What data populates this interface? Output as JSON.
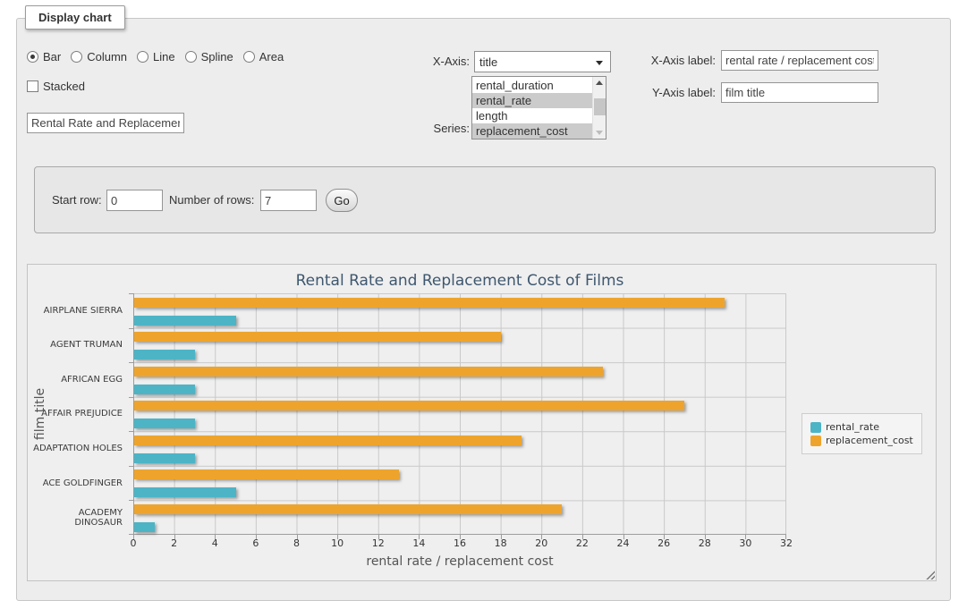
{
  "fieldset": {
    "legend": "Display chart"
  },
  "controls": {
    "chart_types": [
      {
        "label": "Bar",
        "selected": true
      },
      {
        "label": "Column",
        "selected": false
      },
      {
        "label": "Line",
        "selected": false
      },
      {
        "label": "Spline",
        "selected": false
      },
      {
        "label": "Area",
        "selected": false
      }
    ],
    "stacked": {
      "label": "Stacked",
      "checked": false
    },
    "chart_title_input": {
      "value": "Rental Rate and Replacemer"
    },
    "x_axis": {
      "label": "X-Axis:",
      "selected_value": "title"
    },
    "series_select": {
      "label": "Series:",
      "options": [
        {
          "label": "rental_duration",
          "selected": false
        },
        {
          "label": "rental_rate",
          "selected": true
        },
        {
          "label": "length",
          "selected": false
        },
        {
          "label": "replacement_cost",
          "selected": true
        }
      ]
    },
    "x_axis_label": {
      "label": "X-Axis label:",
      "value": "rental rate / replacement cost"
    },
    "y_axis_label": {
      "label": "Y-Axis label:",
      "value": "film title"
    }
  },
  "row_controls": {
    "start_row_label": "Start row:",
    "start_row_value": "0",
    "num_rows_label": "Number of rows:",
    "num_rows_value": "7",
    "go_label": "Go"
  },
  "chart_data": {
    "type": "bar",
    "title": "Rental Rate and Replacement Cost of Films",
    "categories": [
      "AIRPLANE SIERRA",
      "AGENT TRUMAN",
      "AFRICAN EGG",
      "AFFAIR PREJUDICE",
      "ADAPTATION HOLES",
      "ACE GOLDFINGER",
      "ACADEMY DINOSAUR"
    ],
    "series": [
      {
        "name": "rental_rate",
        "color": "#4db4c6",
        "values": [
          4.99,
          2.99,
          2.99,
          2.99,
          2.99,
          4.99,
          0.99
        ]
      },
      {
        "name": "replacement_cost",
        "color": "#eea42c",
        "values": [
          28.99,
          17.99,
          22.99,
          26.99,
          18.99,
          12.99,
          20.99
        ]
      }
    ],
    "group_display_order": [
      "replacement_cost",
      "rental_rate"
    ],
    "xlabel": "rental rate / replacement cost",
    "ylabel": "film title",
    "xlim": [
      0,
      32
    ],
    "xticks": [
      0,
      2,
      4,
      6,
      8,
      10,
      12,
      14,
      16,
      18,
      20,
      22,
      24,
      26,
      28,
      30,
      32
    ],
    "grid": true,
    "legend_position": "right"
  }
}
